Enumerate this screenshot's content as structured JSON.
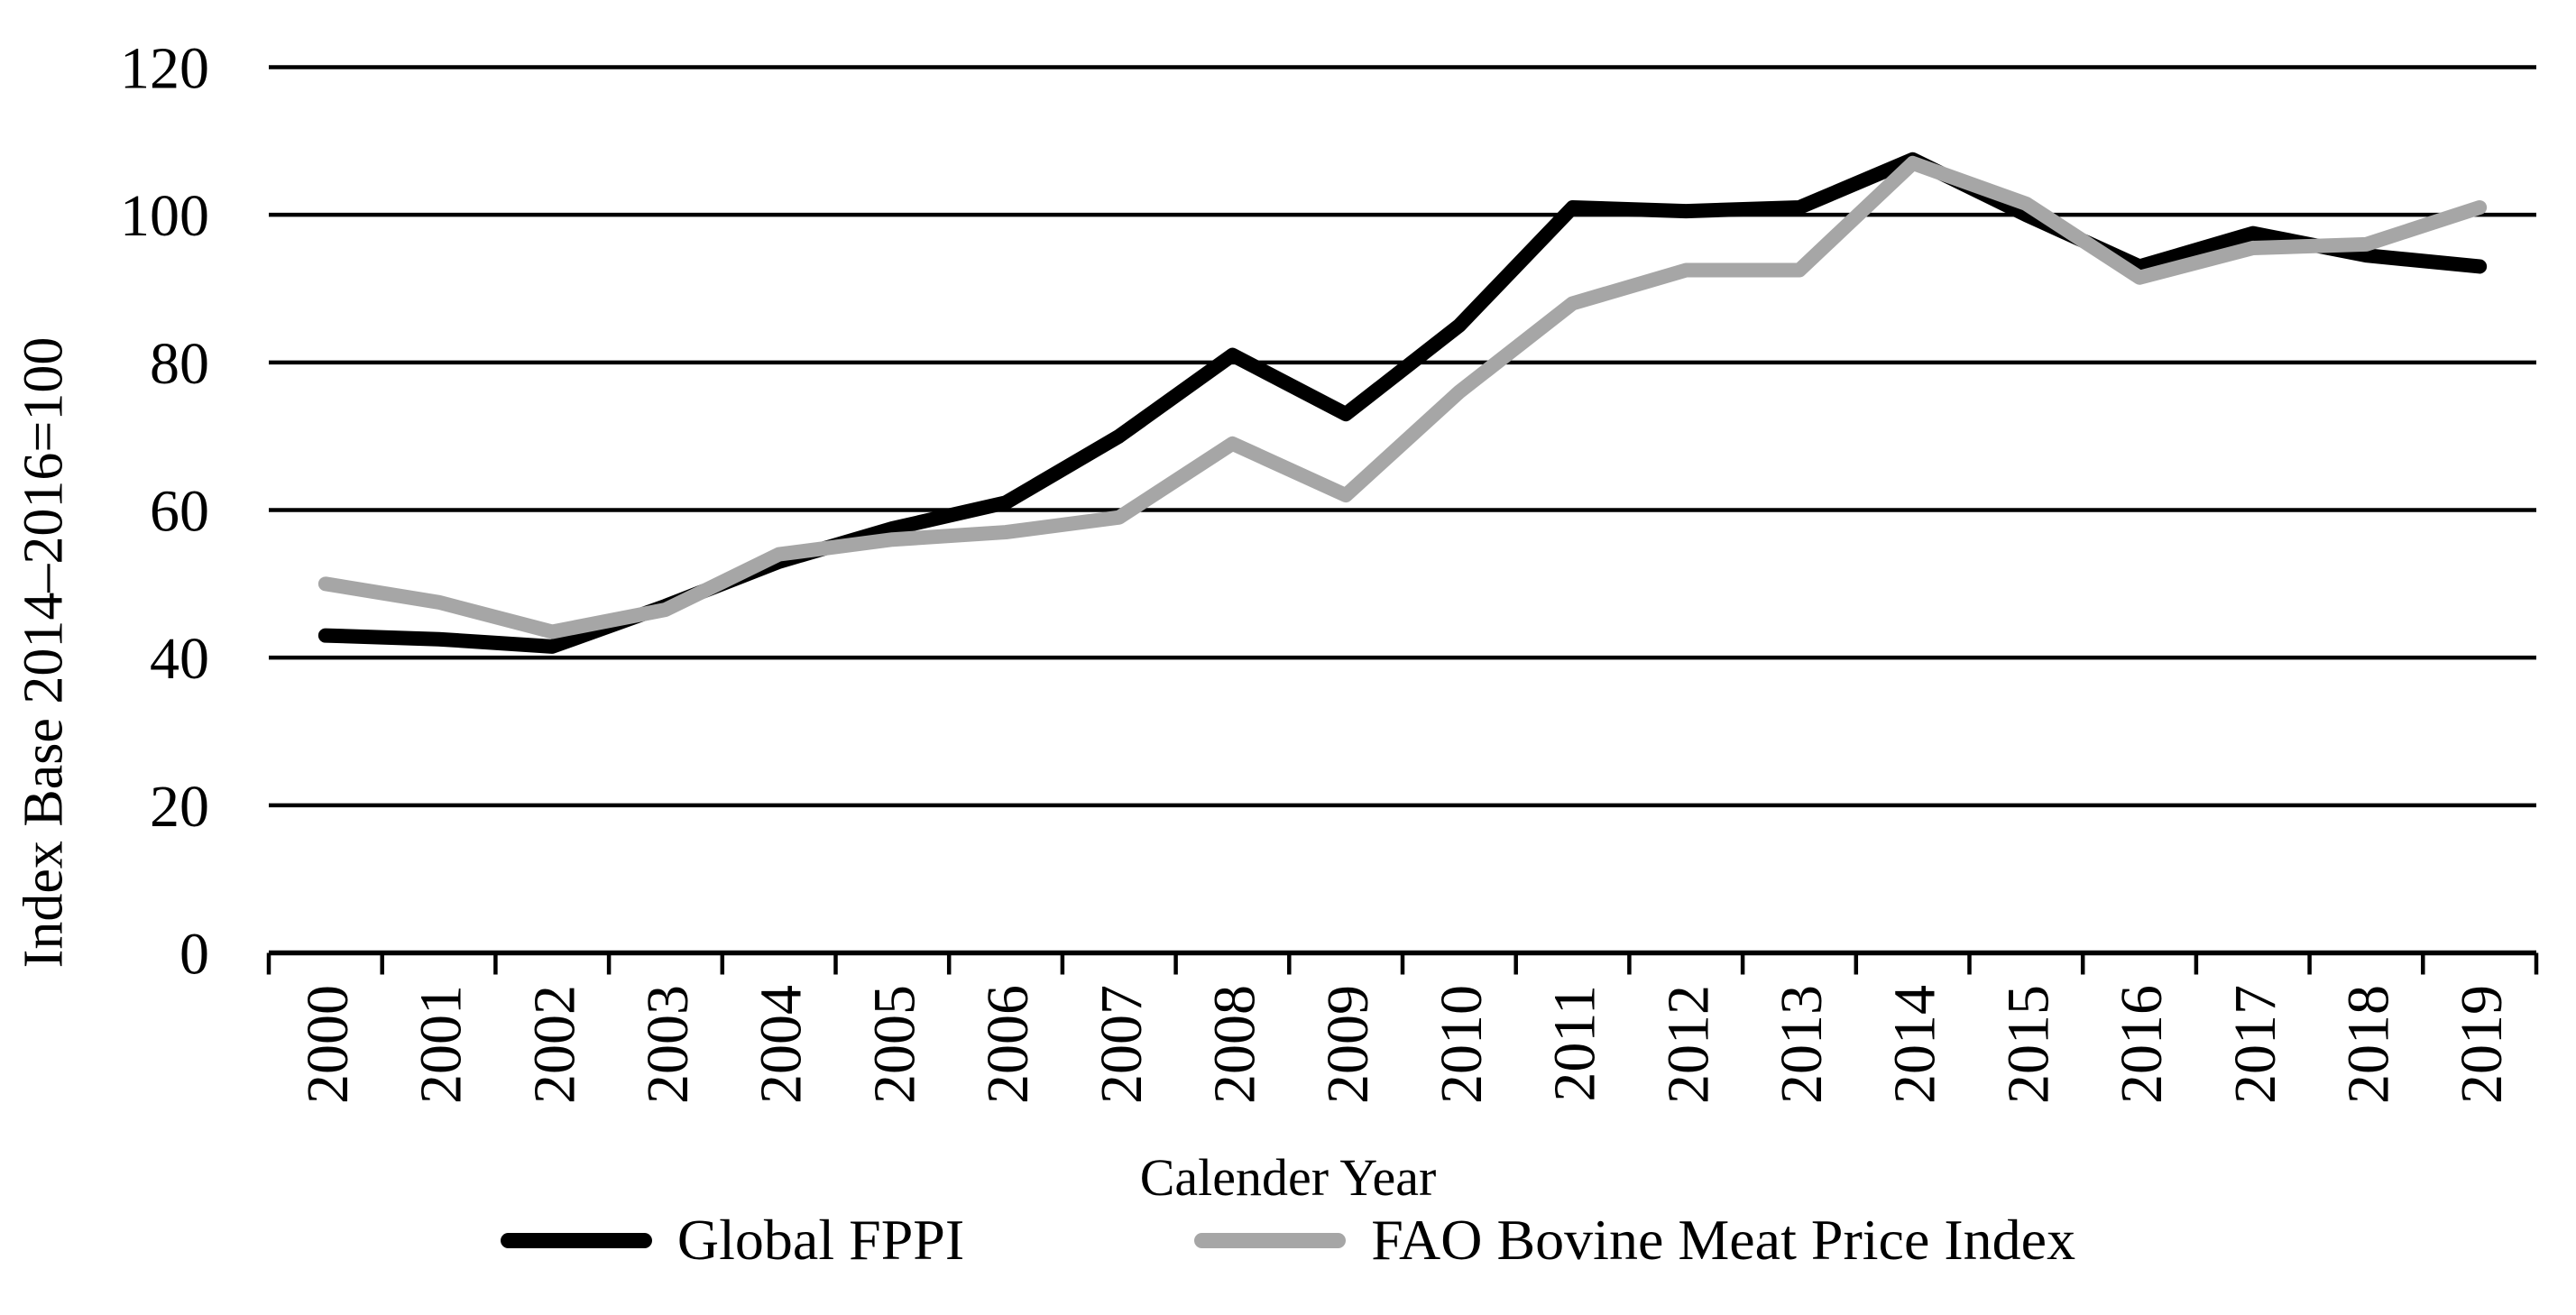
{
  "figure": {
    "background": "#ffffff",
    "axis_color": "#000000"
  },
  "chart_data": {
    "type": "line",
    "title": "",
    "xlabel": "Calender Year",
    "ylabel": "Index Base 2014–2016=100",
    "categories": [
      "2000",
      "2001",
      "2002",
      "2003",
      "2004",
      "2005",
      "2006",
      "2007",
      "2008",
      "2009",
      "2010",
      "2011",
      "2012",
      "2013",
      "2014",
      "2015",
      "2016",
      "2017",
      "2018",
      "2019"
    ],
    "yticks": [
      0,
      20,
      40,
      60,
      80,
      100,
      120
    ],
    "ylim": [
      0,
      120
    ],
    "grid": "horizontal",
    "legend_position": "bottom",
    "series": [
      {
        "name": "Global FPPI",
        "color": "#000000",
        "values": [
          43,
          42.5,
          41.5,
          47,
          53,
          57.5,
          61,
          70,
          81,
          73,
          85,
          101,
          100.5,
          101,
          107.5,
          100,
          93,
          97.5,
          94.5,
          93
        ]
      },
      {
        "name": "FAO Bovine Meat Price Index",
        "color": "#a6a6a6",
        "values": [
          50,
          47.5,
          43.5,
          46.5,
          54,
          56,
          57,
          59,
          69,
          62,
          76,
          88,
          92.5,
          92.5,
          107,
          101.5,
          91.5,
          95.5,
          96,
          101
        ]
      }
    ]
  }
}
